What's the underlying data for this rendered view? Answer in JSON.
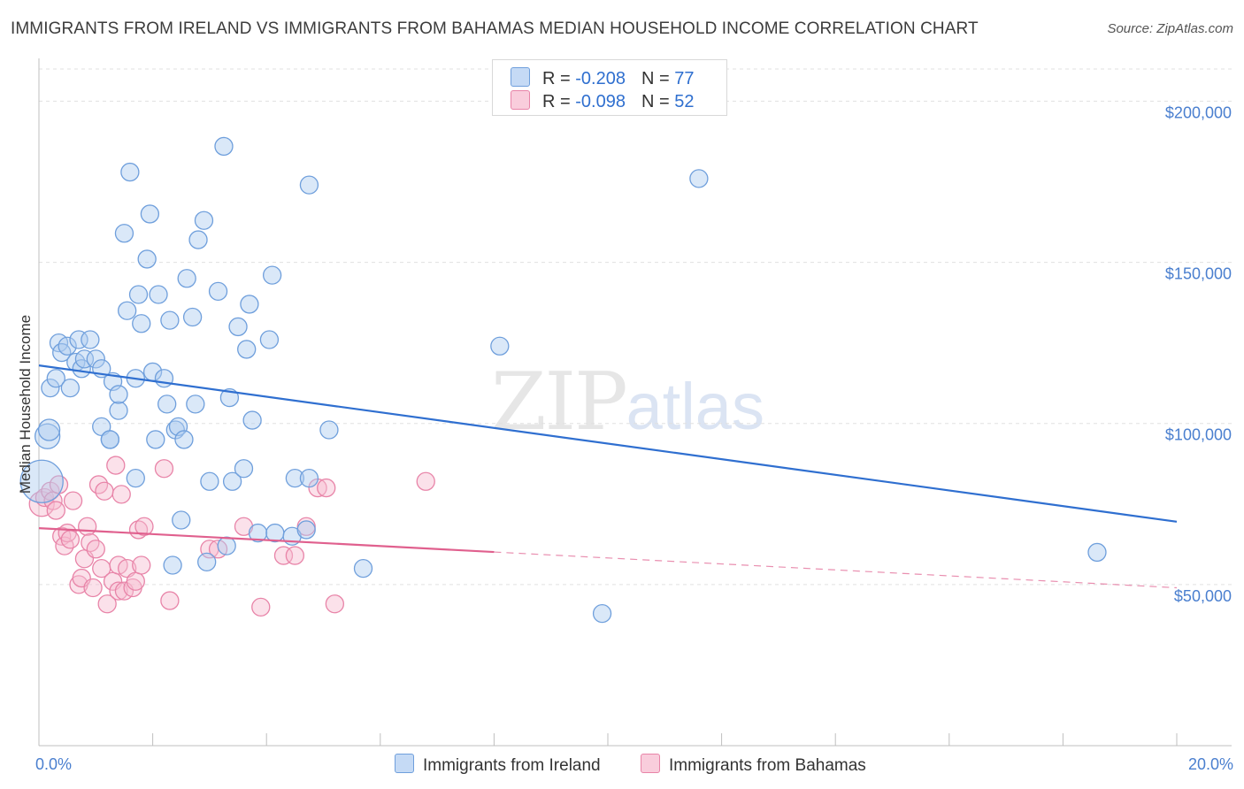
{
  "title": "IMMIGRANTS FROM IRELAND VS IMMIGRANTS FROM BAHAMAS MEDIAN HOUSEHOLD INCOME CORRELATION CHART",
  "source": "Source: ZipAtlas.com",
  "watermark": {
    "zip": "ZIP",
    "atlas": "atlas"
  },
  "legend": {
    "ireland": {
      "r_label": "R = ",
      "r_value": "-0.208",
      "n_label": "N = ",
      "n_value": "77"
    },
    "bahamas": {
      "r_label": "R = ",
      "r_value": "-0.098",
      "n_label": "N = ",
      "n_value": "52"
    }
  },
  "colors": {
    "ireland_fill": "#aecbf0",
    "ireland_stroke": "#6f9fdc",
    "ireland_line": "#2f6fd0",
    "bahamas_fill": "#f6bcd0",
    "bahamas_stroke": "#e884a8",
    "bahamas_line": "#e0608e",
    "grid": "#e0e0e0",
    "tick_text": "#4a7fcf"
  },
  "chart_data": {
    "type": "scatter",
    "xlabel": "",
    "ylabel": "Median Household Income",
    "xlim": [
      0,
      20
    ],
    "ylim": [
      0,
      210000
    ],
    "x_tick_labels": [
      {
        "value": 0,
        "label": "0.0%"
      },
      {
        "value": 20,
        "label": "20.0%"
      }
    ],
    "y_ticks": [
      {
        "value": 50000,
        "label": "$50,000"
      },
      {
        "value": 100000,
        "label": "$100,000"
      },
      {
        "value": 150000,
        "label": "$150,000"
      },
      {
        "value": 200000,
        "label": "$200,000"
      }
    ],
    "grid": true,
    "series": [
      {
        "name": "Immigrants from Ireland",
        "trend": {
          "x": [
            0,
            20
          ],
          "y": [
            118000,
            69500
          ],
          "dashed_from": null
        },
        "points": [
          [
            0.05,
            82000,
            24
          ],
          [
            0.15,
            96000,
            14
          ],
          [
            0.18,
            98000,
            12
          ],
          [
            0.2,
            111000,
            10
          ],
          [
            0.3,
            114000,
            10
          ],
          [
            0.35,
            125000,
            10
          ],
          [
            0.4,
            122000,
            10
          ],
          [
            0.5,
            124000,
            10
          ],
          [
            0.55,
            111000,
            10
          ],
          [
            0.65,
            119000,
            10
          ],
          [
            0.7,
            126000,
            10
          ],
          [
            0.75,
            117000,
            10
          ],
          [
            0.8,
            120000,
            10
          ],
          [
            0.9,
            126000,
            10
          ],
          [
            1.0,
            120000,
            10
          ],
          [
            1.1,
            117000,
            10
          ],
          [
            1.1,
            99000,
            10
          ],
          [
            1.25,
            95000,
            10
          ],
          [
            1.3,
            113000,
            10
          ],
          [
            1.25,
            95000,
            10
          ],
          [
            1.4,
            104000,
            10
          ],
          [
            1.4,
            109000,
            10
          ],
          [
            1.5,
            159000,
            10
          ],
          [
            1.55,
            135000,
            10
          ],
          [
            1.6,
            178000,
            10
          ],
          [
            1.7,
            114000,
            10
          ],
          [
            1.7,
            83000,
            10
          ],
          [
            1.75,
            140000,
            10
          ],
          [
            1.8,
            131000,
            10
          ],
          [
            1.9,
            151000,
            10
          ],
          [
            1.95,
            165000,
            10
          ],
          [
            2.0,
            116000,
            10
          ],
          [
            2.05,
            95000,
            10
          ],
          [
            2.1,
            140000,
            10
          ],
          [
            2.2,
            114000,
            10
          ],
          [
            2.25,
            106000,
            10
          ],
          [
            2.3,
            132000,
            10
          ],
          [
            2.35,
            56000,
            10
          ],
          [
            2.4,
            98000,
            10
          ],
          [
            2.45,
            99000,
            10
          ],
          [
            2.5,
            70000,
            10
          ],
          [
            2.55,
            95000,
            10
          ],
          [
            2.6,
            145000,
            10
          ],
          [
            2.7,
            133000,
            10
          ],
          [
            2.75,
            106000,
            10
          ],
          [
            2.8,
            157000,
            10
          ],
          [
            2.9,
            163000,
            10
          ],
          [
            2.95,
            57000,
            10
          ],
          [
            3.0,
            82000,
            10
          ],
          [
            3.15,
            141000,
            10
          ],
          [
            3.25,
            186000,
            10
          ],
          [
            3.3,
            62000,
            10
          ],
          [
            3.35,
            108000,
            10
          ],
          [
            3.4,
            82000,
            10
          ],
          [
            3.5,
            130000,
            10
          ],
          [
            3.6,
            86000,
            10
          ],
          [
            3.65,
            123000,
            10
          ],
          [
            3.7,
            137000,
            10
          ],
          [
            3.75,
            101000,
            10
          ],
          [
            3.85,
            66000,
            10
          ],
          [
            4.05,
            126000,
            10
          ],
          [
            4.1,
            146000,
            10
          ],
          [
            4.15,
            66000,
            10
          ],
          [
            4.45,
            65000,
            10
          ],
          [
            4.5,
            83000,
            10
          ],
          [
            4.7,
            67000,
            10
          ],
          [
            4.75,
            83000,
            10
          ],
          [
            4.75,
            174000,
            10
          ],
          [
            5.1,
            98000,
            10
          ],
          [
            5.7,
            55000,
            10
          ],
          [
            8.1,
            124000,
            10
          ],
          [
            9.9,
            41000,
            10
          ],
          [
            11.6,
            176000,
            10
          ],
          [
            18.6,
            60000,
            10
          ]
        ]
      },
      {
        "name": "Immigrants from Bahamas",
        "trend": {
          "x": [
            0,
            20
          ],
          "y": [
            67500,
            49000
          ],
          "dashed_from": 8
        },
        "points": [
          [
            0.05,
            75000,
            14
          ],
          [
            0.1,
            77000,
            10
          ],
          [
            0.2,
            79000,
            10
          ],
          [
            0.25,
            76000,
            10
          ],
          [
            0.3,
            73000,
            10
          ],
          [
            0.35,
            81000,
            10
          ],
          [
            0.4,
            65000,
            10
          ],
          [
            0.45,
            62000,
            10
          ],
          [
            0.5,
            66000,
            10
          ],
          [
            0.55,
            64000,
            10
          ],
          [
            0.6,
            76000,
            10
          ],
          [
            0.7,
            50000,
            10
          ],
          [
            0.75,
            52000,
            10
          ],
          [
            0.8,
            58000,
            10
          ],
          [
            0.85,
            68000,
            10
          ],
          [
            0.9,
            63000,
            10
          ],
          [
            0.95,
            49000,
            10
          ],
          [
            1.0,
            61000,
            10
          ],
          [
            1.05,
            81000,
            10
          ],
          [
            1.1,
            55000,
            10
          ],
          [
            1.15,
            79000,
            10
          ],
          [
            1.2,
            44000,
            10
          ],
          [
            1.3,
            51000,
            10
          ],
          [
            1.35,
            87000,
            10
          ],
          [
            1.4,
            56000,
            10
          ],
          [
            1.4,
            48000,
            10
          ],
          [
            1.45,
            78000,
            10
          ],
          [
            1.5,
            48000,
            10
          ],
          [
            1.55,
            55000,
            10
          ],
          [
            1.65,
            49000,
            10
          ],
          [
            1.7,
            51000,
            10
          ],
          [
            1.75,
            67000,
            10
          ],
          [
            1.8,
            56000,
            10
          ],
          [
            1.85,
            68000,
            10
          ],
          [
            2.2,
            86000,
            10
          ],
          [
            2.3,
            45000,
            10
          ],
          [
            3.0,
            61000,
            10
          ],
          [
            3.15,
            61000,
            10
          ],
          [
            3.6,
            68000,
            10
          ],
          [
            3.9,
            43000,
            10
          ],
          [
            4.3,
            59000,
            10
          ],
          [
            4.5,
            59000,
            10
          ],
          [
            4.7,
            68000,
            10
          ],
          [
            4.9,
            80000,
            10
          ],
          [
            5.05,
            80000,
            10
          ],
          [
            5.2,
            44000,
            10
          ],
          [
            6.8,
            82000,
            10
          ]
        ]
      }
    ]
  },
  "bottom_legend": {
    "ireland_label": "Immigrants from Ireland",
    "bahamas_label": "Immigrants from Bahamas"
  }
}
